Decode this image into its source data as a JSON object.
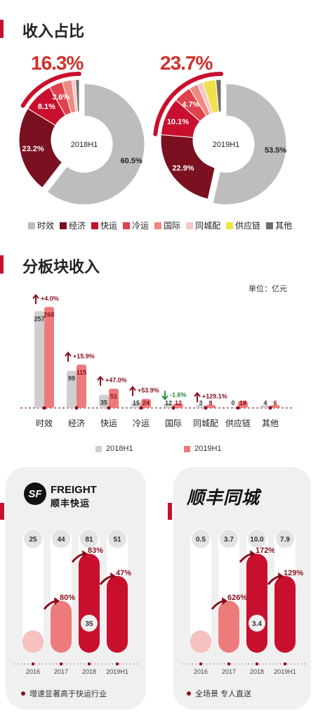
{
  "revenue_share": {
    "title": "收入占比",
    "donuts": [
      {
        "center_label": "2018H1",
        "highlight_pct": "16.3%",
        "slices": [
          {
            "name": "时效",
            "pct": 60.5,
            "label": "60.5%"
          },
          {
            "name": "经济",
            "pct": 23.2,
            "label": "23.2%"
          },
          {
            "name": "快运",
            "pct": 8.1,
            "label": "8.1%"
          },
          {
            "name": "冷运",
            "pct": 3.6,
            "label": "3.6%"
          },
          {
            "name": "国际",
            "pct": 2.6,
            "label": ""
          },
          {
            "name": "同城配",
            "pct": 1.0,
            "label": ""
          },
          {
            "name": "供应链",
            "pct": 0.0,
            "label": ""
          },
          {
            "name": "其他",
            "pct": 1.0,
            "label": ""
          }
        ]
      },
      {
        "center_label": "2019H1",
        "highlight_pct": "23.7%",
        "slices": [
          {
            "name": "时效",
            "pct": 53.5,
            "label": "53.5%"
          },
          {
            "name": "经济",
            "pct": 22.9,
            "label": "22.9%"
          },
          {
            "name": "快运",
            "pct": 10.1,
            "label": "10.1%"
          },
          {
            "name": "冷运",
            "pct": 4.7,
            "label": "4.7%"
          },
          {
            "name": "国际",
            "pct": 2.4,
            "label": ""
          },
          {
            "name": "同城配",
            "pct": 1.5,
            "label": ""
          },
          {
            "name": "供应链",
            "pct": 3.5,
            "label": ""
          },
          {
            "name": "其他",
            "pct": 1.4,
            "label": ""
          }
        ]
      }
    ],
    "legend": [
      {
        "label": "时效",
        "color": "#bdbdbd"
      },
      {
        "label": "经济",
        "color": "#7a1020"
      },
      {
        "label": "快运",
        "color": "#c8102e"
      },
      {
        "label": "冷运",
        "color": "#e0424d"
      },
      {
        "label": "国际",
        "color": "#ee8a82"
      },
      {
        "label": "同城配",
        "color": "#f6c6c2"
      },
      {
        "label": "供应链",
        "color": "#f0e14a"
      },
      {
        "label": "其他",
        "color": "#6d6d6d"
      }
    ]
  },
  "segment_revenue": {
    "title": "分板块收入",
    "unit": "单位：亿元",
    "legend_2018": "2018H1",
    "legend_2019": "2019H1"
  },
  "freight_panel": {
    "logo_sf": "SF",
    "logo_freight": "FREIGHT",
    "logo_cn": "顺丰快运",
    "note": "增速显著高于快运行业"
  },
  "city_panel": {
    "logo": "顺丰同城",
    "note": "全场景 专人直送"
  },
  "chart_data": [
    {
      "type": "pie",
      "title": "2018H1",
      "categories": [
        "时效",
        "经济",
        "快运",
        "冷运",
        "国际",
        "同城配",
        "供应链",
        "其他"
      ],
      "values": [
        60.5,
        23.2,
        8.1,
        3.6,
        2.6,
        1.0,
        0.0,
        1.0
      ]
    },
    {
      "type": "pie",
      "title": "2019H1",
      "categories": [
        "时效",
        "经济",
        "快运",
        "冷运",
        "国际",
        "同城配",
        "供应链",
        "其他"
      ],
      "values": [
        53.5,
        22.9,
        10.1,
        4.7,
        2.4,
        1.5,
        3.5,
        1.4
      ]
    },
    {
      "type": "bar",
      "title": "分板块收入",
      "categories": [
        "时效",
        "经济",
        "快运",
        "冷运",
        "国际",
        "同城配",
        "供应链",
        "其他"
      ],
      "series": [
        {
          "name": "2018H1",
          "values": [
            257,
            99,
            35,
            15,
            12,
            3,
            0,
            4
          ],
          "color": "#cfcfcf"
        },
        {
          "name": "2019H1",
          "values": [
            268,
            115,
            51,
            24,
            12,
            8,
            18,
            6
          ],
          "color": "#ee7b7b"
        }
      ],
      "growth_labels": [
        "+4.0%",
        "+15.9%",
        "+47.0%",
        "+53.9%",
        "-1.6%",
        "+129.1%",
        "",
        ""
      ],
      "ylim": [
        0,
        280
      ]
    },
    {
      "type": "bar",
      "title": "FREIGHT",
      "categories": [
        "2016",
        "2017",
        "2018",
        "2019H1"
      ],
      "values": [
        25,
        44,
        81,
        51
      ],
      "value_labels": [
        "25",
        "44",
        "81",
        "51"
      ],
      "fill": [
        0.18,
        0.42,
        0.8,
        0.62
      ],
      "growth_labels": [
        "",
        "80%",
        "83%",
        "47%"
      ],
      "inner_label": {
        "index": 2,
        "text": "35"
      }
    },
    {
      "type": "bar",
      "title": "顺丰同城",
      "categories": [
        "2016",
        "2017",
        "2018",
        "2019H1"
      ],
      "values": [
        0.5,
        3.7,
        10.0,
        7.9
      ],
      "value_labels": [
        "0.5",
        "3.7",
        "10.0",
        "7.9"
      ],
      "fill": [
        0.18,
        0.42,
        0.8,
        0.62
      ],
      "growth_labels": [
        "",
        "626%",
        "172%",
        "129%"
      ],
      "inner_label": {
        "index": 2,
        "text": "3.4"
      }
    }
  ]
}
